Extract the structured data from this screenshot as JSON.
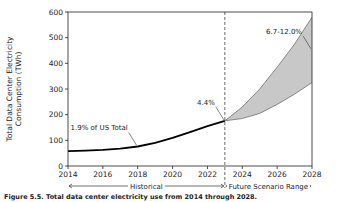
{
  "chart_data": {
    "type": "line",
    "ylabel": "Total Data Center Electricity Consumption (TWh)",
    "caption": "Figure 5.5.  Total data center electricity use from 2014 through 2028.",
    "xlim": [
      2014,
      2028
    ],
    "xticks": [
      2014,
      2016,
      2018,
      2020,
      2022,
      2024,
      2026,
      2028
    ],
    "ylim": [
      0,
      600
    ],
    "yticks": [
      0,
      100,
      200,
      300,
      400,
      500,
      600
    ],
    "grid": false,
    "series": [
      {
        "name": "Historical",
        "type": "line",
        "color": "#000000",
        "x": [
          2014,
          2015,
          2016,
          2017,
          2018,
          2019,
          2020,
          2021,
          2022,
          2023
        ],
        "values": [
          58,
          60,
          63,
          68,
          76,
          90,
          110,
          132,
          155,
          176
        ]
      },
      {
        "name": "Future Scenario Range",
        "type": "area",
        "color": "#c8c8c8",
        "x": [
          2023,
          2024,
          2025,
          2026,
          2027,
          2028
        ],
        "values": [
          176,
          230,
          300,
          385,
          475,
          580
        ],
        "low": [
          176,
          185,
          205,
          240,
          280,
          325
        ]
      }
    ],
    "annotations": [
      {
        "text": "1.9% of US Total",
        "x": 2018
      },
      {
        "text": "4.4%",
        "x": 2023
      },
      {
        "text": "6.7-12.0%",
        "x": 2028
      }
    ]
  }
}
